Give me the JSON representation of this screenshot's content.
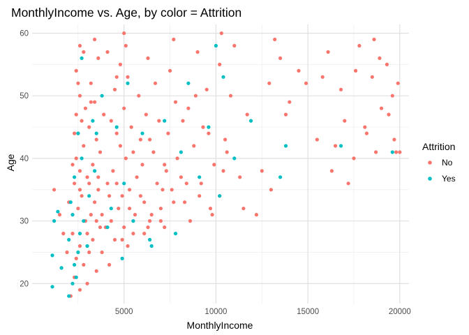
{
  "chart_data": {
    "type": "scatter",
    "title": "MonthlyIncome vs. Age, by  color = Attrition",
    "xlabel": "MonthlyIncome",
    "ylabel": "Age",
    "xlim": [
      0,
      20500
    ],
    "ylim": [
      16.8,
      61.4
    ],
    "xticks": [
      5000,
      10000,
      15000,
      20000
    ],
    "xtick_labels": [
      "5000",
      "10000",
      "15000",
      "20000"
    ],
    "yticks": [
      20,
      30,
      40,
      50,
      60
    ],
    "ytick_labels": [
      "20",
      "30",
      "40",
      "50",
      "60"
    ],
    "grid": true,
    "legend": {
      "title": "Attrition",
      "position": "right",
      "entries": [
        {
          "label": "No",
          "color": "#F8766D"
        },
        {
          "label": "Yes",
          "color": "#00BFC4"
        }
      ]
    },
    "series": [
      {
        "name": "No",
        "color": "#F8766D",
        "points": [
          [
            2100,
            18
          ],
          [
            2600,
            19
          ],
          [
            3000,
            20
          ],
          [
            2300,
            21
          ],
          [
            3500,
            22
          ],
          [
            2800,
            23
          ],
          [
            4200,
            23
          ],
          [
            2400,
            24
          ],
          [
            3100,
            25
          ],
          [
            3800,
            25
          ],
          [
            5200,
            26
          ],
          [
            2600,
            26
          ],
          [
            4500,
            27
          ],
          [
            3300,
            27
          ],
          [
            6100,
            28
          ],
          [
            2200,
            28
          ],
          [
            3700,
            29
          ],
          [
            5000,
            29
          ],
          [
            7200,
            29
          ],
          [
            2900,
            30
          ],
          [
            4300,
            30
          ],
          [
            6400,
            30
          ],
          [
            8600,
            30
          ],
          [
            3200,
            31
          ],
          [
            5600,
            31
          ],
          [
            9800,
            31
          ],
          [
            2500,
            32
          ],
          [
            4700,
            32
          ],
          [
            7000,
            32
          ],
          [
            11500,
            32
          ],
          [
            3400,
            33
          ],
          [
            6100,
            33
          ],
          [
            8300,
            33
          ],
          [
            2700,
            34
          ],
          [
            4900,
            34
          ],
          [
            10200,
            34
          ],
          [
            3600,
            35
          ],
          [
            5300,
            35
          ],
          [
            7600,
            35
          ],
          [
            13000,
            35
          ],
          [
            2300,
            36
          ],
          [
            4100,
            36
          ],
          [
            6800,
            36
          ],
          [
            9200,
            36
          ],
          [
            3000,
            37
          ],
          [
            5700,
            37
          ],
          [
            8100,
            37
          ],
          [
            2600,
            38
          ],
          [
            4400,
            38
          ],
          [
            7300,
            38
          ],
          [
            12500,
            38
          ],
          [
            3300,
            39
          ],
          [
            6000,
            39
          ],
          [
            9900,
            39
          ],
          [
            2400,
            40
          ],
          [
            5100,
            40
          ],
          [
            7900,
            40
          ],
          [
            17500,
            40
          ],
          [
            3700,
            41
          ],
          [
            6600,
            41
          ],
          [
            19800,
            41
          ],
          [
            2800,
            42
          ],
          [
            4800,
            42
          ],
          [
            8800,
            42
          ],
          [
            16500,
            42
          ],
          [
            3500,
            43
          ],
          [
            5900,
            43
          ],
          [
            10500,
            43
          ],
          [
            2500,
            44
          ],
          [
            4600,
            44
          ],
          [
            7400,
            44
          ],
          [
            18200,
            44
          ],
          [
            3100,
            45
          ],
          [
            5400,
            45
          ],
          [
            9300,
            45
          ],
          [
            2700,
            46
          ],
          [
            4300,
            46
          ],
          [
            6900,
            46
          ],
          [
            17000,
            46
          ],
          [
            3900,
            47
          ],
          [
            6200,
            47
          ],
          [
            11700,
            47
          ],
          [
            2900,
            48
          ],
          [
            5000,
            48
          ],
          [
            8500,
            48
          ],
          [
            19000,
            48
          ],
          [
            3400,
            49
          ],
          [
            7800,
            49
          ],
          [
            14000,
            49
          ],
          [
            2600,
            50
          ],
          [
            5800,
            50
          ],
          [
            10800,
            50
          ],
          [
            19600,
            50
          ],
          [
            4500,
            51
          ],
          [
            9500,
            51
          ],
          [
            16800,
            51
          ],
          [
            3200,
            52
          ],
          [
            6700,
            52
          ],
          [
            12900,
            52
          ],
          [
            19900,
            52
          ],
          [
            5200,
            53
          ],
          [
            15800,
            53
          ],
          [
            18500,
            53
          ],
          [
            2400,
            54
          ],
          [
            7500,
            54
          ],
          [
            14500,
            54
          ],
          [
            17600,
            54
          ],
          [
            4800,
            55
          ],
          [
            10200,
            55
          ],
          [
            19300,
            55
          ],
          [
            3600,
            56
          ],
          [
            6300,
            56
          ],
          [
            13500,
            56
          ],
          [
            18900,
            56
          ],
          [
            2800,
            57
          ],
          [
            9000,
            57
          ],
          [
            16100,
            57
          ],
          [
            5100,
            58
          ],
          [
            11000,
            58
          ],
          [
            17800,
            58
          ],
          [
            3400,
            59
          ],
          [
            7700,
            59
          ],
          [
            13200,
            59
          ],
          [
            18600,
            59
          ],
          [
            5000,
            60
          ],
          [
            10300,
            60
          ],
          [
            1200,
            35
          ],
          [
            1500,
            31
          ],
          [
            1700,
            28
          ],
          [
            1900,
            25
          ],
          [
            2000,
            33
          ],
          [
            2200,
            39
          ],
          [
            2300,
            44
          ],
          [
            2400,
            47
          ],
          [
            2500,
            52
          ],
          [
            2600,
            58
          ],
          [
            3200,
            49
          ],
          [
            4100,
            57
          ],
          [
            4600,
            53
          ],
          [
            5500,
            41
          ],
          [
            6400,
            43
          ],
          [
            7200,
            39
          ],
          [
            8200,
            46
          ],
          [
            8900,
            50
          ],
          [
            9600,
            44
          ],
          [
            10600,
            41
          ],
          [
            11300,
            37
          ],
          [
            12200,
            31
          ],
          [
            13800,
            47
          ],
          [
            14900,
            52
          ],
          [
            15500,
            43
          ],
          [
            16300,
            38
          ],
          [
            17200,
            36
          ],
          [
            18100,
            45
          ],
          [
            18700,
            41
          ],
          [
            19400,
            47
          ],
          [
            19700,
            43
          ],
          [
            20000,
            41
          ],
          [
            3800,
            31
          ],
          [
            4200,
            34
          ],
          [
            4600,
            36
          ],
          [
            5300,
            32
          ],
          [
            5900,
            34
          ],
          [
            6500,
            31
          ],
          [
            7100,
            35
          ],
          [
            7700,
            33
          ],
          [
            8400,
            36
          ],
          [
            9100,
            34
          ],
          [
            9700,
            32
          ],
          [
            10400,
            38
          ],
          [
            3000,
            28
          ],
          [
            3500,
            30
          ],
          [
            4000,
            29
          ],
          [
            4900,
            27
          ],
          [
            5500,
            28
          ],
          [
            6300,
            29
          ],
          [
            7000,
            30
          ],
          [
            2600,
            35
          ],
          [
            3100,
            36
          ],
          [
            3600,
            37
          ]
        ]
      },
      {
        "name": "Yes",
        "color": "#00BFC4",
        "points": [
          [
            1100,
            24.5
          ],
          [
            1100,
            19.5
          ],
          [
            1200,
            30
          ],
          [
            1400,
            31.5
          ],
          [
            1600,
            22.5
          ],
          [
            2000,
            18
          ],
          [
            2200,
            20
          ],
          [
            2400,
            21
          ],
          [
            2500,
            25
          ],
          [
            2600,
            28
          ],
          [
            2200,
            31
          ],
          [
            2100,
            33
          ],
          [
            2300,
            37
          ],
          [
            2500,
            44
          ],
          [
            2700,
            56
          ],
          [
            2800,
            30
          ],
          [
            3000,
            26
          ],
          [
            3100,
            34
          ],
          [
            3400,
            38
          ],
          [
            3500,
            44
          ],
          [
            3800,
            50
          ],
          [
            4100,
            29
          ],
          [
            4300,
            32
          ],
          [
            4900,
            24
          ],
          [
            5000,
            36
          ],
          [
            5200,
            52
          ],
          [
            5500,
            30
          ],
          [
            6000,
            44
          ],
          [
            6500,
            26
          ],
          [
            7200,
            46
          ],
          [
            7800,
            28
          ],
          [
            8100,
            41
          ],
          [
            8500,
            52
          ],
          [
            9100,
            37
          ],
          [
            9600,
            45
          ],
          [
            10000,
            58
          ],
          [
            10200,
            34
          ],
          [
            10400,
            53
          ],
          [
            11000,
            40
          ],
          [
            11900,
            46
          ],
          [
            13500,
            37
          ],
          [
            13800,
            42
          ],
          [
            16800,
            42
          ],
          [
            19600,
            41
          ],
          [
            2000,
            27
          ],
          [
            2300,
            23
          ],
          [
            2700,
            40
          ],
          [
            3300,
            46
          ],
          [
            4600,
            45
          ],
          [
            6400,
            27
          ]
        ]
      }
    ]
  }
}
